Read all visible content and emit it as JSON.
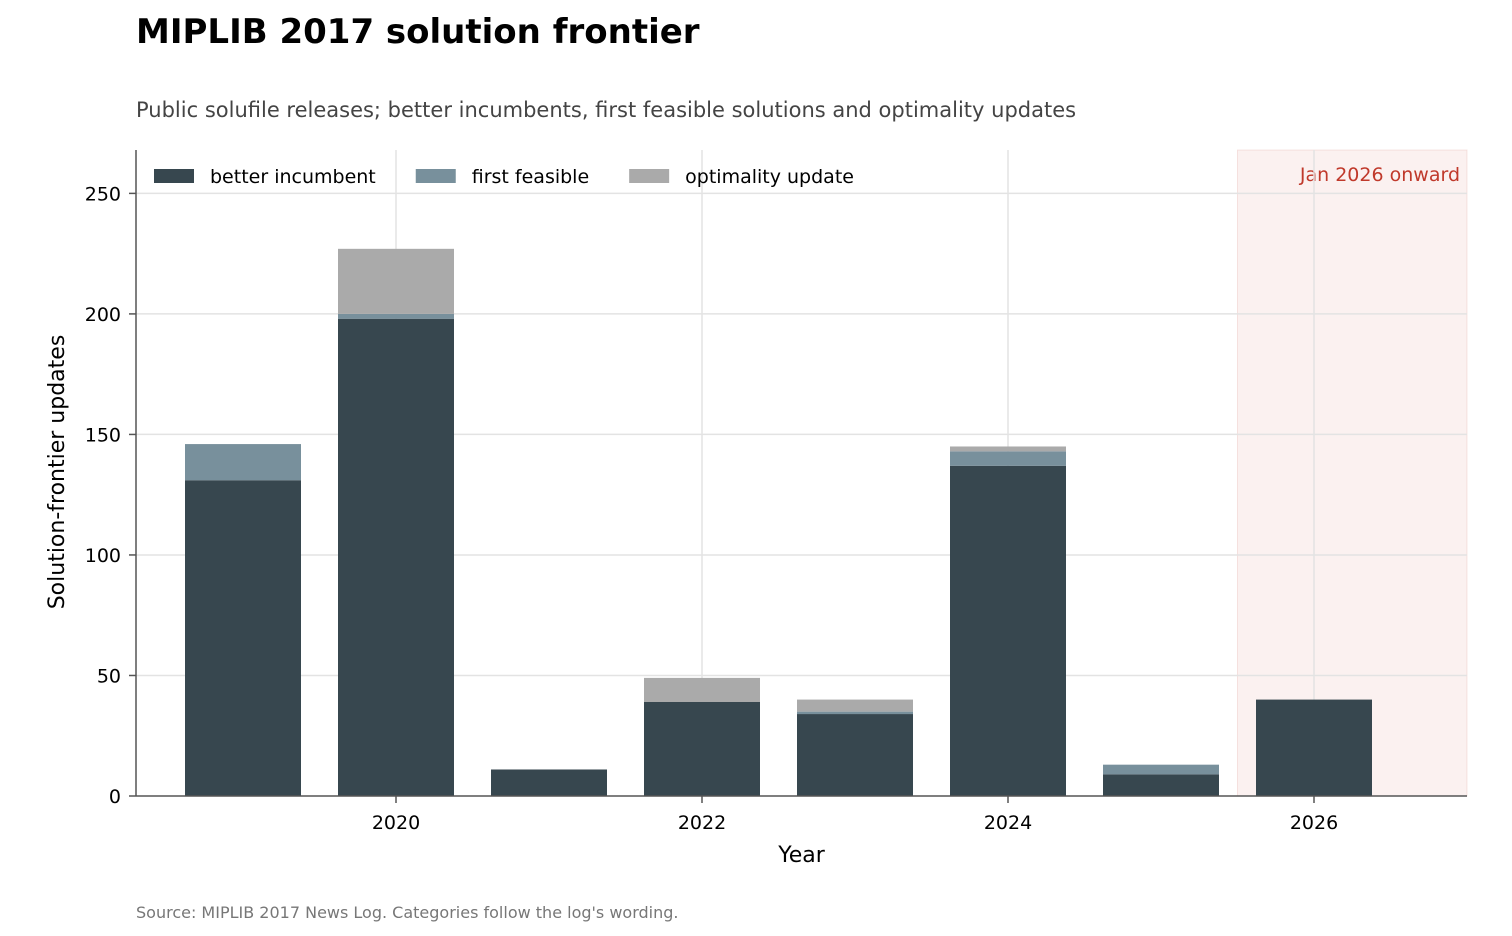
{
  "title": "MIPLIB 2017 solution frontier",
  "subtitle": "Public solufile releases; better incumbents, first feasible solutions and optimality updates",
  "source": "Source: MIPLIB 2017 News Log. Categories follow the log's wording.",
  "chart_data": {
    "type": "bar",
    "stacked": true,
    "categories": [
      "2019",
      "2020",
      "2021",
      "2022",
      "2023",
      "2024",
      "2025",
      "2026"
    ],
    "series": [
      {
        "name": "better incumbent",
        "values": [
          131,
          198,
          11,
          39,
          34,
          137,
          9,
          40
        ],
        "color": "#37474f"
      },
      {
        "name": "first feasible",
        "values": [
          15,
          2,
          0,
          0,
          1,
          6,
          4,
          0
        ],
        "color": "#78909c"
      },
      {
        "name": "optimality update",
        "values": [
          0,
          27,
          0,
          10,
          5,
          2,
          0,
          0
        ],
        "color": "#aaaaaa"
      }
    ],
    "xlabel": "Year",
    "ylabel": "Solution-frontier updates",
    "x_tick_labels": [
      "2020",
      "2022",
      "2024",
      "2026"
    ],
    "y_ticks": [
      0,
      50,
      100,
      150,
      200,
      250
    ],
    "ylim": [
      0,
      268
    ],
    "grid": true,
    "legend_position": "top-left",
    "highlight": {
      "from": "2026",
      "label": "Jan 2026 onward",
      "color": "#c0392b"
    }
  }
}
